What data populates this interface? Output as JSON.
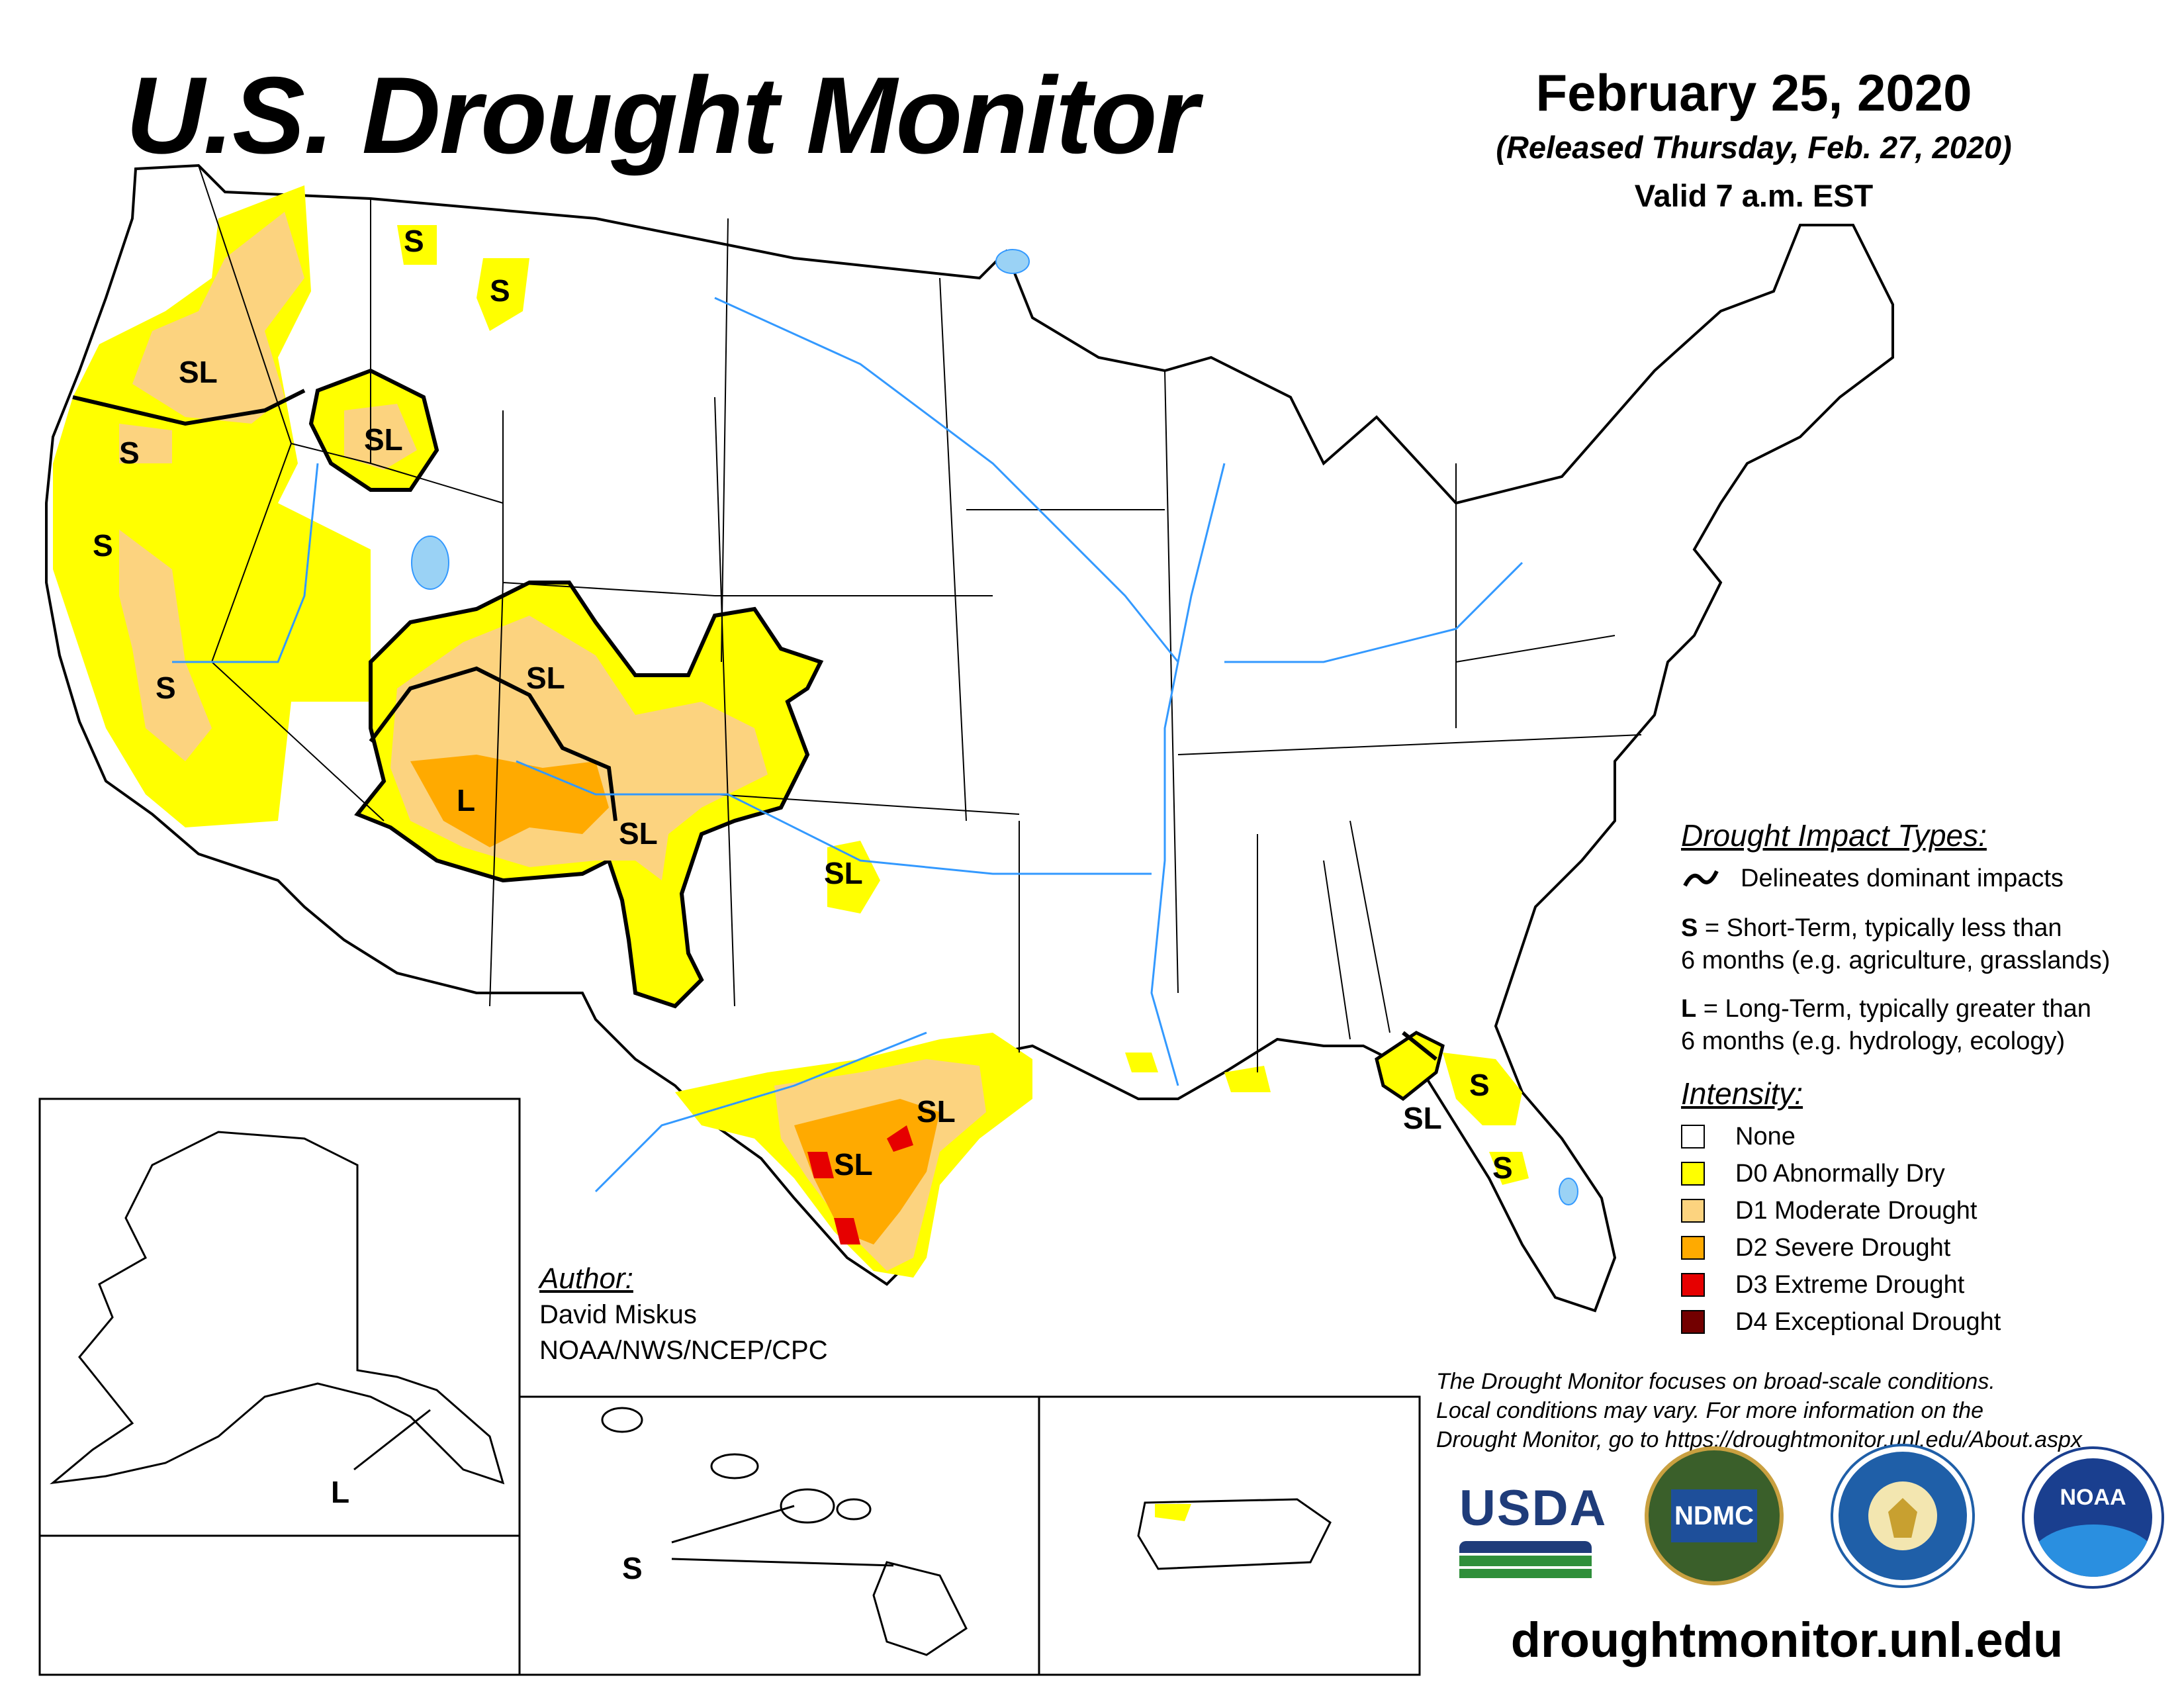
{
  "header": {
    "title": "U.S. Drought Monitor",
    "date": "February 25, 2020",
    "released": "(Released Thursday, Feb. 27, 2020)",
    "valid": "Valid 7 a.m. EST"
  },
  "map_labels": {
    "sl": "SL",
    "s": "S",
    "l": "L"
  },
  "impact_types": {
    "heading": "Drought Impact Types:",
    "delineates": "Delineates dominant impacts",
    "short_term_key": "S",
    "short_term_line1": "= Short-Term, typically less than",
    "short_term_line2": "6 months (e.g. agriculture, grasslands)",
    "long_term_key": "L",
    "long_term_line1": "= Long-Term, typically greater than",
    "long_term_line2": "6 months (e.g. hydrology, ecology)"
  },
  "intensity": {
    "heading": "Intensity:",
    "items": [
      {
        "label": "None",
        "color": "#ffffff"
      },
      {
        "label": "D0 Abnormally Dry",
        "color": "#ffff00"
      },
      {
        "label": "D1 Moderate Drought",
        "color": "#fcd37f"
      },
      {
        "label": "D2 Severe Drought",
        "color": "#ffaa00"
      },
      {
        "label": "D3 Extreme Drought",
        "color": "#e60000"
      },
      {
        "label": "D4 Exceptional Drought",
        "color": "#730000"
      }
    ]
  },
  "author": {
    "heading": "Author:",
    "name": "David Miskus",
    "org": "NOAA/NWS/NCEP/CPC"
  },
  "note": {
    "line1": "The Drought Monitor focuses on broad-scale conditions.",
    "line2": "Local conditions may vary. For more information on the",
    "line3": "Drought Monitor, go to https://droughtmonitor.unl.edu/About.aspx"
  },
  "logos": {
    "usda": "USDA",
    "ndmc": "NDMC",
    "noaa": "NOAA"
  },
  "footer_url": "droughtmonitor.unl.edu",
  "colors": {
    "water": "#3399ff",
    "lake": "#9ad2f5"
  }
}
